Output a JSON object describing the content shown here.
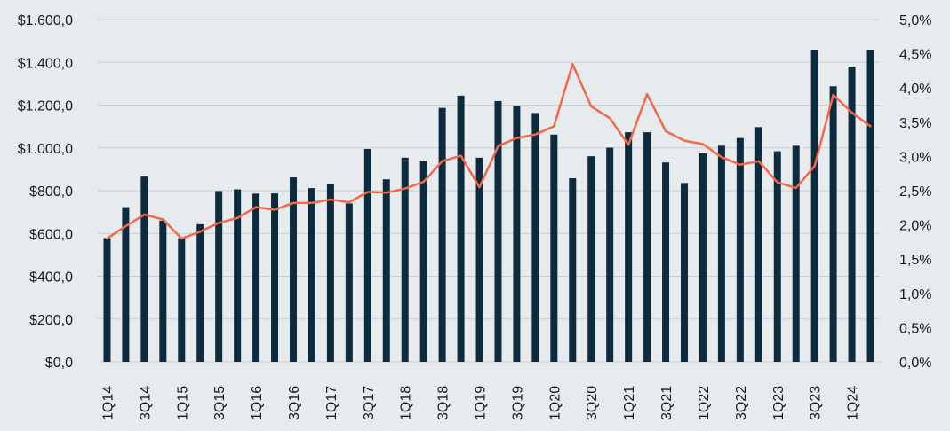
{
  "chart_data": {
    "type": "bar",
    "categories": [
      "1Q14",
      "2Q14",
      "3Q14",
      "4Q14",
      "1Q15",
      "2Q15",
      "3Q15",
      "4Q15",
      "1Q16",
      "2Q16",
      "3Q16",
      "4Q16",
      "1Q17",
      "2Q17",
      "3Q17",
      "4Q17",
      "1Q18",
      "2Q18",
      "3Q18",
      "4Q18",
      "1Q19",
      "2Q19",
      "3Q19",
      "4Q19",
      "1Q20",
      "2Q20",
      "3Q20",
      "4Q20",
      "1Q21",
      "2Q21",
      "3Q21",
      "4Q21",
      "1Q22",
      "2Q22",
      "3Q22",
      "4Q22",
      "1Q23",
      "2Q23",
      "3Q23",
      "4Q23",
      "1Q24",
      "2Q24"
    ],
    "x_tick_labels": [
      "1Q14",
      "",
      "3Q14",
      "",
      "1Q15",
      "",
      "3Q15",
      "",
      "1Q16",
      "",
      "3Q16",
      "",
      "1Q17",
      "",
      "3Q17",
      "",
      "1Q18",
      "",
      "3Q18",
      "",
      "1Q19",
      "",
      "3Q19",
      "",
      "1Q20",
      "",
      "3Q20",
      "",
      "1Q21",
      "",
      "3Q21",
      "",
      "1Q22",
      "",
      "3Q22",
      "",
      "1Q23",
      "",
      "3Q23",
      "",
      "1Q24",
      ""
    ],
    "series": [
      {
        "type": "bar",
        "axis": "left",
        "color": "#0d2b3e",
        "values": [
          578,
          723,
          866,
          660,
          578,
          643,
          798,
          806,
          786,
          787,
          862,
          812,
          830,
          740,
          995,
          853,
          954,
          937,
          1187,
          1244,
          954,
          1219,
          1194,
          1163,
          1062,
          858,
          961,
          1001,
          1073,
          1073,
          932,
          836,
          975,
          1010,
          1046,
          1097,
          984,
          1010,
          1459,
          1288,
          1380,
          1459
        ]
      },
      {
        "type": "line",
        "axis": "right",
        "color": "#f2684a",
        "values": [
          1.8,
          1.98,
          2.15,
          2.08,
          1.8,
          1.9,
          2.03,
          2.1,
          2.26,
          2.22,
          2.32,
          2.32,
          2.37,
          2.33,
          2.48,
          2.47,
          2.53,
          2.63,
          2.93,
          3.01,
          2.55,
          3.15,
          3.27,
          3.32,
          3.44,
          4.35,
          3.73,
          3.56,
          3.17,
          3.91,
          3.37,
          3.23,
          3.18,
          2.99,
          2.88,
          2.93,
          2.62,
          2.54,
          2.86,
          3.9,
          3.64,
          3.44
        ]
      }
    ],
    "y_left": {
      "lim": [
        0,
        1600
      ],
      "tick_labels": [
        "$0,0",
        "$200,0",
        "$400,0",
        "$600,0",
        "$800,0",
        "$1.000,0",
        "$1.200,0",
        "$1.400,0",
        "$1.600,0"
      ]
    },
    "y_right": {
      "lim": [
        0,
        5.0
      ],
      "tick_labels": [
        "0,0%",
        "0,5%",
        "1,0%",
        "1,5%",
        "2,0%",
        "2,5%",
        "3,0%",
        "3,5%",
        "4,0%",
        "4,5%",
        "5,0%"
      ]
    },
    "grid": true,
    "legend": false
  }
}
